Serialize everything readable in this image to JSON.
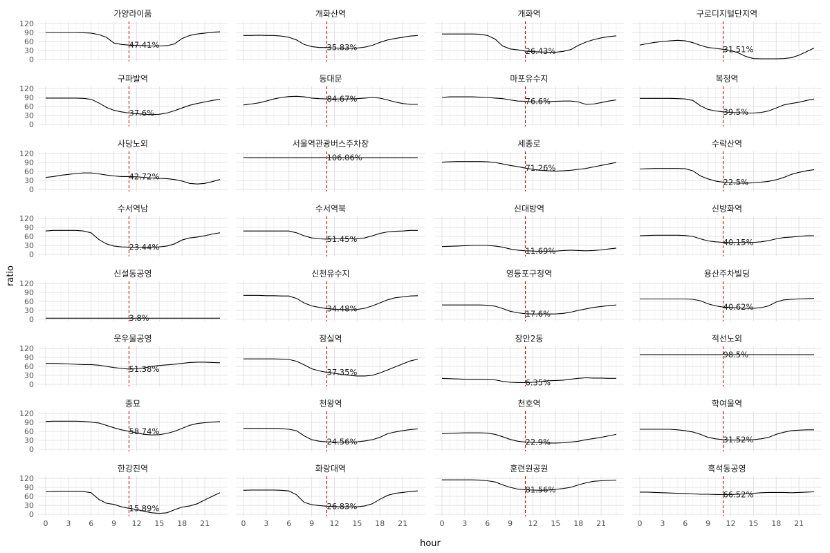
{
  "chart_data": {
    "type": "line",
    "xlabel": "hour",
    "ylabel": "ratio",
    "xlim": [
      0,
      23
    ],
    "ylim": [
      0,
      120
    ],
    "x_ticks": [
      0,
      3,
      6,
      9,
      12,
      15,
      18,
      21
    ],
    "y_ticks": [
      0,
      30,
      60,
      90,
      120
    ],
    "reference_hour": 11,
    "grid": true,
    "line_color": "#000000",
    "ref_line_color": "#cc0000",
    "panels": [
      {
        "name": "가양라이품",
        "label": "47.41%",
        "values": [
          90,
          90,
          90,
          90,
          90,
          89,
          88,
          83,
          74,
          55,
          50,
          48,
          47,
          46,
          45,
          45,
          46,
          52,
          70,
          80,
          85,
          88,
          91,
          92
        ]
      },
      {
        "name": "개화산역",
        "label": "35.83%",
        "values": [
          80,
          80,
          81,
          80,
          80,
          78,
          74,
          65,
          50,
          43,
          40,
          40,
          38,
          37,
          37,
          38,
          41,
          47,
          57,
          65,
          70,
          74,
          78,
          80
        ]
      },
      {
        "name": "개화역",
        "label": "26.43%",
        "values": [
          85,
          85,
          85,
          85,
          85,
          84,
          80,
          68,
          45,
          35,
          32,
          28,
          26,
          25,
          24,
          24,
          27,
          33,
          47,
          58,
          66,
          72,
          76,
          79
        ]
      },
      {
        "name": "구로디지털단지역",
        "label": "31.51%",
        "values": [
          48,
          53,
          57,
          60,
          62,
          64,
          62,
          56,
          47,
          40,
          37,
          34,
          30,
          22,
          10,
          3,
          2,
          2,
          2,
          3,
          6,
          14,
          26,
          38
        ]
      },
      {
        "name": "구파발역",
        "label": "37.6%",
        "values": [
          88,
          88,
          88,
          88,
          88,
          87,
          84,
          72,
          57,
          47,
          42,
          38,
          36,
          34,
          33,
          34,
          38,
          46,
          55,
          64,
          70,
          75,
          80,
          84
        ]
      },
      {
        "name": "동대문",
        "label": "84.67%",
        "values": [
          65,
          68,
          72,
          78,
          85,
          90,
          93,
          94,
          92,
          88,
          86,
          85,
          85,
          85,
          85,
          86,
          88,
          90,
          88,
          82,
          75,
          70,
          67,
          67
        ]
      },
      {
        "name": "마포유수지",
        "label": "76.6%",
        "values": [
          90,
          92,
          92,
          92,
          92,
          91,
          90,
          88,
          86,
          82,
          78,
          77,
          75,
          75,
          76,
          77,
          78,
          78,
          75,
          67,
          68,
          73,
          78,
          82
        ]
      },
      {
        "name": "복정역",
        "label": "39.5%",
        "values": [
          87,
          87,
          87,
          87,
          87,
          86,
          85,
          80,
          62,
          50,
          45,
          42,
          40,
          39,
          38,
          38,
          40,
          45,
          55,
          65,
          70,
          74,
          80,
          85
        ]
      },
      {
        "name": "사당노외",
        "label": "42.72%",
        "values": [
          40,
          43,
          47,
          50,
          53,
          55,
          55,
          52,
          48,
          45,
          43,
          43,
          42,
          40,
          38,
          37,
          36,
          33,
          28,
          20,
          18,
          20,
          26,
          33
        ]
      },
      {
        "name": "서울역관광버스주차장",
        "label": "106.06%",
        "values": [
          106,
          106,
          106,
          106,
          106,
          106,
          106,
          106,
          106,
          106,
          106,
          106,
          106,
          106,
          106,
          106,
          106,
          106,
          106,
          106,
          106,
          106,
          106,
          106
        ]
      },
      {
        "name": "세종로",
        "label": "71.26%",
        "values": [
          91,
          92,
          93,
          93,
          93,
          93,
          92,
          90,
          85,
          80,
          76,
          71,
          67,
          64,
          62,
          61,
          62,
          64,
          67,
          70,
          75,
          80,
          85,
          90
        ]
      },
      {
        "name": "수락산역",
        "label": "22.5%",
        "values": [
          68,
          69,
          70,
          70,
          70,
          70,
          69,
          62,
          45,
          35,
          28,
          24,
          22,
          21,
          21,
          22,
          24,
          27,
          32,
          40,
          50,
          57,
          62,
          66
        ]
      },
      {
        "name": "수서역남",
        "label": "23.44%",
        "values": [
          78,
          80,
          80,
          80,
          80,
          78,
          72,
          50,
          35,
          28,
          25,
          24,
          23,
          23,
          24,
          25,
          28,
          35,
          48,
          55,
          58,
          62,
          68,
          72
        ]
      },
      {
        "name": "수서역북",
        "label": "51.45%",
        "values": [
          78,
          78,
          78,
          78,
          78,
          78,
          78,
          72,
          62,
          55,
          52,
          51,
          52,
          52,
          52,
          52,
          55,
          62,
          70,
          75,
          77,
          78,
          80,
          80
        ]
      },
      {
        "name": "신대방역",
        "label": "11.69%",
        "values": [
          26,
          27,
          28,
          29,
          30,
          30,
          30,
          28,
          24,
          18,
          14,
          12,
          11,
          10,
          10,
          11,
          13,
          14,
          13,
          12,
          13,
          15,
          18,
          21
        ]
      },
      {
        "name": "신방화역",
        "label": "40.15%",
        "values": [
          62,
          63,
          64,
          64,
          64,
          64,
          63,
          60,
          52,
          45,
          42,
          40,
          40,
          40,
          40,
          40,
          42,
          46,
          52,
          56,
          58,
          60,
          62,
          62
        ]
      },
      {
        "name": "신설동공영",
        "label": "3.8%",
        "values": [
          4,
          4,
          4,
          4,
          4,
          4,
          4,
          4,
          4,
          4,
          4,
          4,
          4,
          4,
          4,
          4,
          4,
          4,
          4,
          4,
          4,
          4,
          4,
          4
        ]
      },
      {
        "name": "신천유수지",
        "label": "34.48%",
        "values": [
          80,
          80,
          80,
          79,
          79,
          78,
          78,
          70,
          55,
          45,
          40,
          36,
          34,
          33,
          32,
          33,
          37,
          45,
          55,
          65,
          72,
          75,
          78,
          79
        ]
      },
      {
        "name": "영등포구청역",
        "label": "17.6%",
        "values": [
          48,
          48,
          48,
          48,
          48,
          48,
          47,
          44,
          36,
          27,
          22,
          19,
          18,
          18,
          18,
          18,
          20,
          24,
          30,
          35,
          40,
          43,
          46,
          48
        ]
      },
      {
        "name": "용산주차빌딩",
        "label": "40.62%",
        "values": [
          68,
          68,
          68,
          68,
          68,
          68,
          68,
          67,
          62,
          52,
          45,
          41,
          40,
          38,
          37,
          37,
          39,
          45,
          58,
          65,
          67,
          68,
          69,
          70
        ]
      },
      {
        "name": "웃우물공영",
        "label": "51.38%",
        "values": [
          70,
          70,
          69,
          68,
          67,
          66,
          66,
          64,
          60,
          56,
          53,
          51,
          52,
          55,
          60,
          63,
          65,
          67,
          70,
          73,
          74,
          74,
          73,
          72
        ]
      },
      {
        "name": "잠실역",
        "label": "37.35%",
        "values": [
          85,
          85,
          85,
          85,
          85,
          84,
          83,
          77,
          65,
          52,
          45,
          40,
          37,
          33,
          30,
          28,
          28,
          30,
          38,
          48,
          58,
          68,
          78,
          84
        ]
      },
      {
        "name": "장안2동",
        "label": "6.35%",
        "values": [
          20,
          19,
          18,
          17,
          17,
          17,
          16,
          15,
          10,
          7,
          6,
          6,
          7,
          9,
          12,
          13,
          14,
          17,
          20,
          22,
          21,
          21,
          20,
          20
        ]
      },
      {
        "name": "적선노외",
        "label": "98.5%",
        "values": [
          99,
          99,
          99,
          99,
          99,
          99,
          99,
          99,
          99,
          99,
          99,
          99,
          99,
          99,
          99,
          99,
          99,
          99,
          99,
          99,
          99,
          99,
          99,
          99
        ]
      },
      {
        "name": "종묘",
        "label": "58.74%",
        "values": [
          93,
          94,
          94,
          94,
          94,
          93,
          91,
          88,
          80,
          72,
          65,
          60,
          55,
          50,
          48,
          49,
          53,
          60,
          70,
          80,
          86,
          89,
          91,
          92
        ]
      },
      {
        "name": "천왕역",
        "label": "24.56%",
        "values": [
          70,
          70,
          70,
          70,
          70,
          69,
          67,
          62,
          45,
          32,
          27,
          25,
          24,
          24,
          24,
          25,
          28,
          32,
          40,
          52,
          58,
          62,
          66,
          68
        ]
      },
      {
        "name": "천호역",
        "label": "22.9%",
        "values": [
          52,
          53,
          54,
          55,
          55,
          55,
          54,
          50,
          42,
          33,
          27,
          24,
          23,
          22,
          21,
          21,
          22,
          24,
          27,
          32,
          36,
          40,
          45,
          50
        ]
      },
      {
        "name": "학여울역",
        "label": "31.52%",
        "values": [
          67,
          67,
          67,
          67,
          67,
          65,
          62,
          58,
          50,
          40,
          35,
          32,
          31,
          31,
          31,
          32,
          35,
          40,
          50,
          57,
          62,
          64,
          65,
          65
        ]
      },
      {
        "name": "한강진역",
        "label": "15.89%",
        "values": [
          75,
          76,
          77,
          77,
          77,
          76,
          72,
          50,
          37,
          33,
          25,
          20,
          16,
          10,
          5,
          3,
          5,
          15,
          24,
          28,
          35,
          48,
          60,
          72
        ]
      },
      {
        "name": "화랑대역",
        "label": "26.83%",
        "values": [
          80,
          81,
          81,
          81,
          81,
          80,
          78,
          65,
          40,
          32,
          29,
          27,
          26,
          25,
          25,
          25,
          28,
          35,
          50,
          63,
          70,
          73,
          76,
          78
        ]
      },
      {
        "name": "훈련원공원",
        "label": "81.56%",
        "values": [
          115,
          115,
          115,
          115,
          115,
          114,
          112,
          108,
          98,
          90,
          84,
          82,
          81,
          80,
          81,
          83,
          86,
          90,
          98,
          105,
          110,
          112,
          113,
          114
        ]
      },
      {
        "name": "흑석동공영",
        "label": "66.52%",
        "values": [
          74,
          74,
          73,
          72,
          71,
          70,
          69,
          68,
          67,
          67,
          66,
          66,
          66,
          67,
          68,
          70,
          72,
          73,
          73,
          73,
          72,
          73,
          74,
          75
        ]
      }
    ]
  }
}
